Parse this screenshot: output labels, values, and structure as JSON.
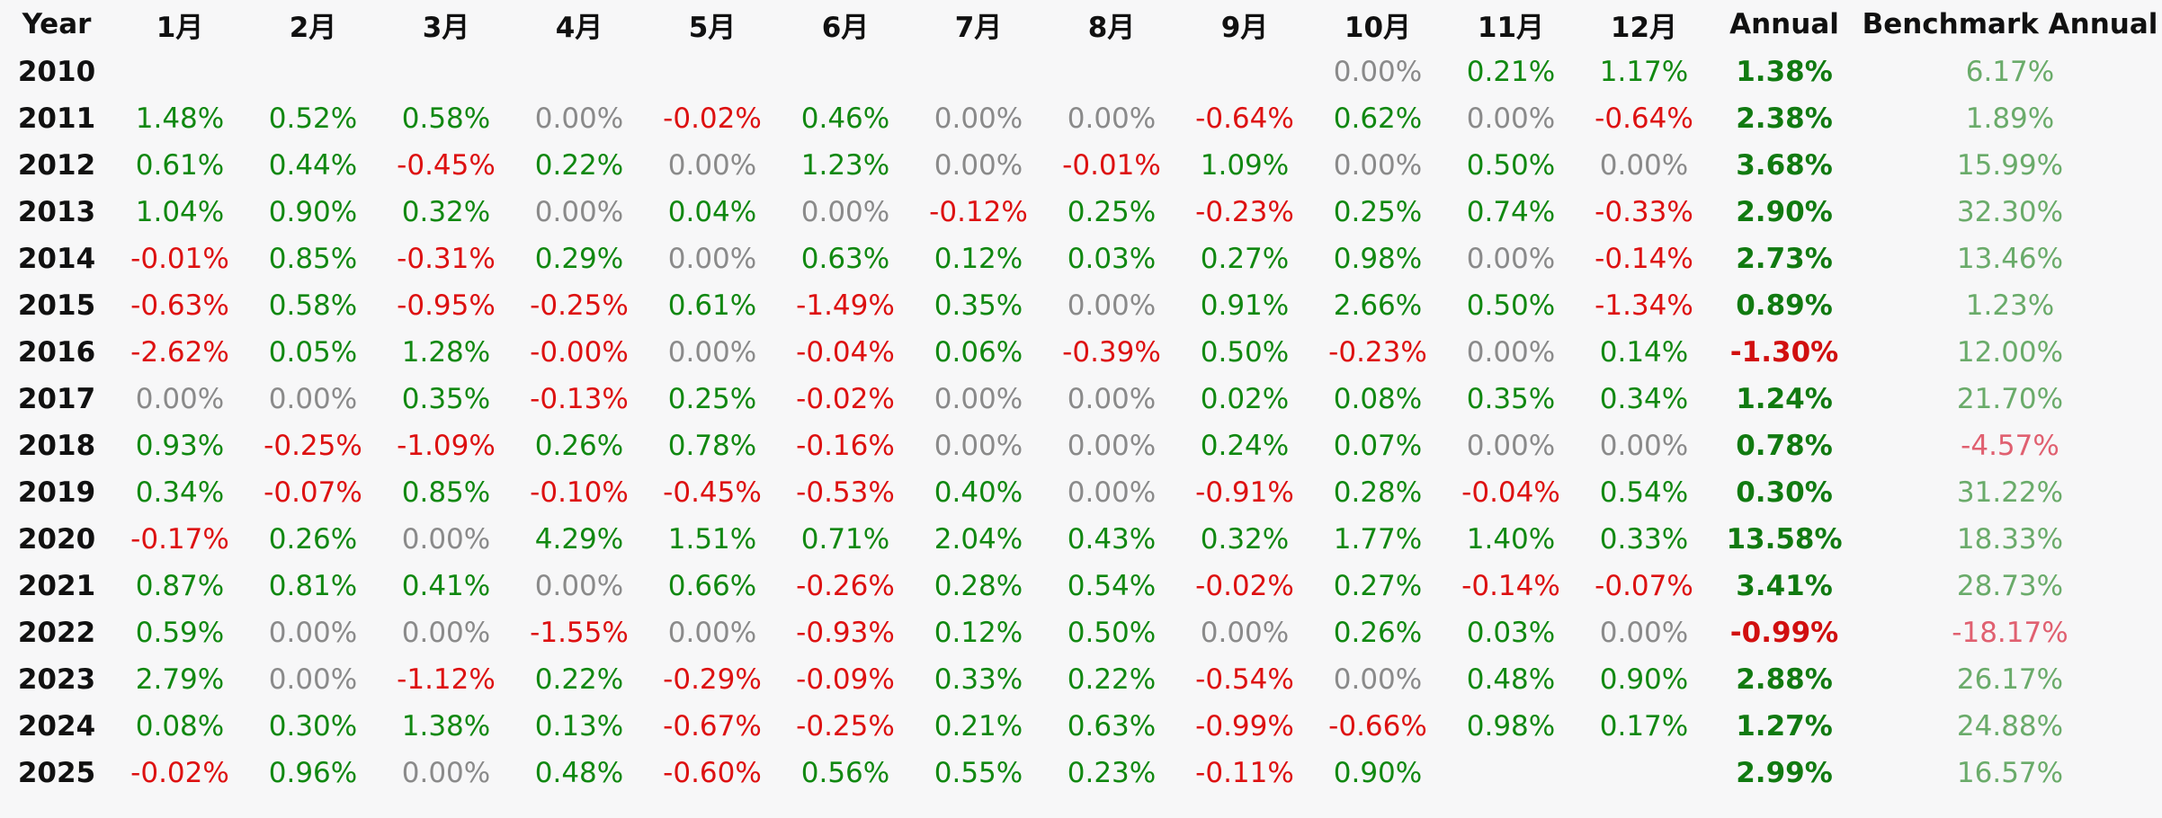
{
  "header": {
    "year": "Year",
    "months": [
      "1月",
      "2月",
      "3月",
      "4月",
      "5月",
      "6月",
      "7月",
      "8月",
      "9月",
      "10月",
      "11月",
      "12月"
    ],
    "annual": "Annual",
    "benchmark": "Benchmark Annual"
  },
  "rows": [
    {
      "year": "2010",
      "months": [
        "",
        "",
        "",
        "",
        "",
        "",
        "",
        "",
        "",
        "0.00%",
        "0.21%",
        "1.17%"
      ],
      "annual": "1.38%",
      "benchmark": "6.17%"
    },
    {
      "year": "2011",
      "months": [
        "1.48%",
        "0.52%",
        "0.58%",
        "0.00%",
        "-0.02%",
        "0.46%",
        "0.00%",
        "0.00%",
        "-0.64%",
        "0.62%",
        "0.00%",
        "-0.64%"
      ],
      "annual": "2.38%",
      "benchmark": "1.89%"
    },
    {
      "year": "2012",
      "months": [
        "0.61%",
        "0.44%",
        "-0.45%",
        "0.22%",
        "0.00%",
        "1.23%",
        "0.00%",
        "-0.01%",
        "1.09%",
        "0.00%",
        "0.50%",
        "0.00%"
      ],
      "annual": "3.68%",
      "benchmark": "15.99%"
    },
    {
      "year": "2013",
      "months": [
        "1.04%",
        "0.90%",
        "0.32%",
        "0.00%",
        "0.04%",
        "0.00%",
        "-0.12%",
        "0.25%",
        "-0.23%",
        "0.25%",
        "0.74%",
        "-0.33%"
      ],
      "annual": "2.90%",
      "benchmark": "32.30%"
    },
    {
      "year": "2014",
      "months": [
        "-0.01%",
        "0.85%",
        "-0.31%",
        "0.29%",
        "0.00%",
        "0.63%",
        "0.12%",
        "0.03%",
        "0.27%",
        "0.98%",
        "0.00%",
        "-0.14%"
      ],
      "annual": "2.73%",
      "benchmark": "13.46%"
    },
    {
      "year": "2015",
      "months": [
        "-0.63%",
        "0.58%",
        "-0.95%",
        "-0.25%",
        "0.61%",
        "-1.49%",
        "0.35%",
        "0.00%",
        "0.91%",
        "2.66%",
        "0.50%",
        "-1.34%"
      ],
      "annual": "0.89%",
      "benchmark": "1.23%"
    },
    {
      "year": "2016",
      "months": [
        "-2.62%",
        "0.05%",
        "1.28%",
        "-0.00%",
        "0.00%",
        "-0.04%",
        "0.06%",
        "-0.39%",
        "0.50%",
        "-0.23%",
        "0.00%",
        "0.14%"
      ],
      "annual": "-1.30%",
      "benchmark": "12.00%"
    },
    {
      "year": "2017",
      "months": [
        "0.00%",
        "0.00%",
        "0.35%",
        "-0.13%",
        "0.25%",
        "-0.02%",
        "0.00%",
        "0.00%",
        "0.02%",
        "0.08%",
        "0.35%",
        "0.34%"
      ],
      "annual": "1.24%",
      "benchmark": "21.70%"
    },
    {
      "year": "2018",
      "months": [
        "0.93%",
        "-0.25%",
        "-1.09%",
        "0.26%",
        "0.78%",
        "-0.16%",
        "0.00%",
        "0.00%",
        "0.24%",
        "0.07%",
        "0.00%",
        "0.00%"
      ],
      "annual": "0.78%",
      "benchmark": "-4.57%"
    },
    {
      "year": "2019",
      "months": [
        "0.34%",
        "-0.07%",
        "0.85%",
        "-0.10%",
        "-0.45%",
        "-0.53%",
        "0.40%",
        "0.00%",
        "-0.91%",
        "0.28%",
        "-0.04%",
        "0.54%"
      ],
      "annual": "0.30%",
      "benchmark": "31.22%"
    },
    {
      "year": "2020",
      "months": [
        "-0.17%",
        "0.26%",
        "0.00%",
        "4.29%",
        "1.51%",
        "0.71%",
        "2.04%",
        "0.43%",
        "0.32%",
        "1.77%",
        "1.40%",
        "0.33%"
      ],
      "annual": "13.58%",
      "benchmark": "18.33%"
    },
    {
      "year": "2021",
      "months": [
        "0.87%",
        "0.81%",
        "0.41%",
        "0.00%",
        "0.66%",
        "-0.26%",
        "0.28%",
        "0.54%",
        "-0.02%",
        "0.27%",
        "-0.14%",
        "-0.07%"
      ],
      "annual": "3.41%",
      "benchmark": "28.73%"
    },
    {
      "year": "2022",
      "months": [
        "0.59%",
        "0.00%",
        "0.00%",
        "-1.55%",
        "0.00%",
        "-0.93%",
        "0.12%",
        "0.50%",
        "0.00%",
        "0.26%",
        "0.03%",
        "0.00%"
      ],
      "annual": "-0.99%",
      "benchmark": "-18.17%"
    },
    {
      "year": "2023",
      "months": [
        "2.79%",
        "0.00%",
        "-1.12%",
        "0.22%",
        "-0.29%",
        "-0.09%",
        "0.33%",
        "0.22%",
        "-0.54%",
        "0.00%",
        "0.48%",
        "0.90%"
      ],
      "annual": "2.88%",
      "benchmark": "26.17%"
    },
    {
      "year": "2024",
      "months": [
        "0.08%",
        "0.30%",
        "1.38%",
        "0.13%",
        "-0.67%",
        "-0.25%",
        "0.21%",
        "0.63%",
        "-0.99%",
        "-0.66%",
        "0.98%",
        "0.17%"
      ],
      "annual": "1.27%",
      "benchmark": "24.88%"
    },
    {
      "year": "2025",
      "months": [
        "-0.02%",
        "0.96%",
        "0.00%",
        "0.48%",
        "-0.60%",
        "0.56%",
        "0.55%",
        "0.23%",
        "-0.11%",
        "0.90%",
        "",
        ""
      ],
      "annual": "2.99%",
      "benchmark": "16.57%"
    }
  ],
  "colors": {
    "positive": "#118811",
    "negative": "#dd1111",
    "zero": "#8a8a8a",
    "benchmark_positive": "#6aab6a",
    "benchmark_negative": "#e06070",
    "background": "#f7f7f8"
  }
}
